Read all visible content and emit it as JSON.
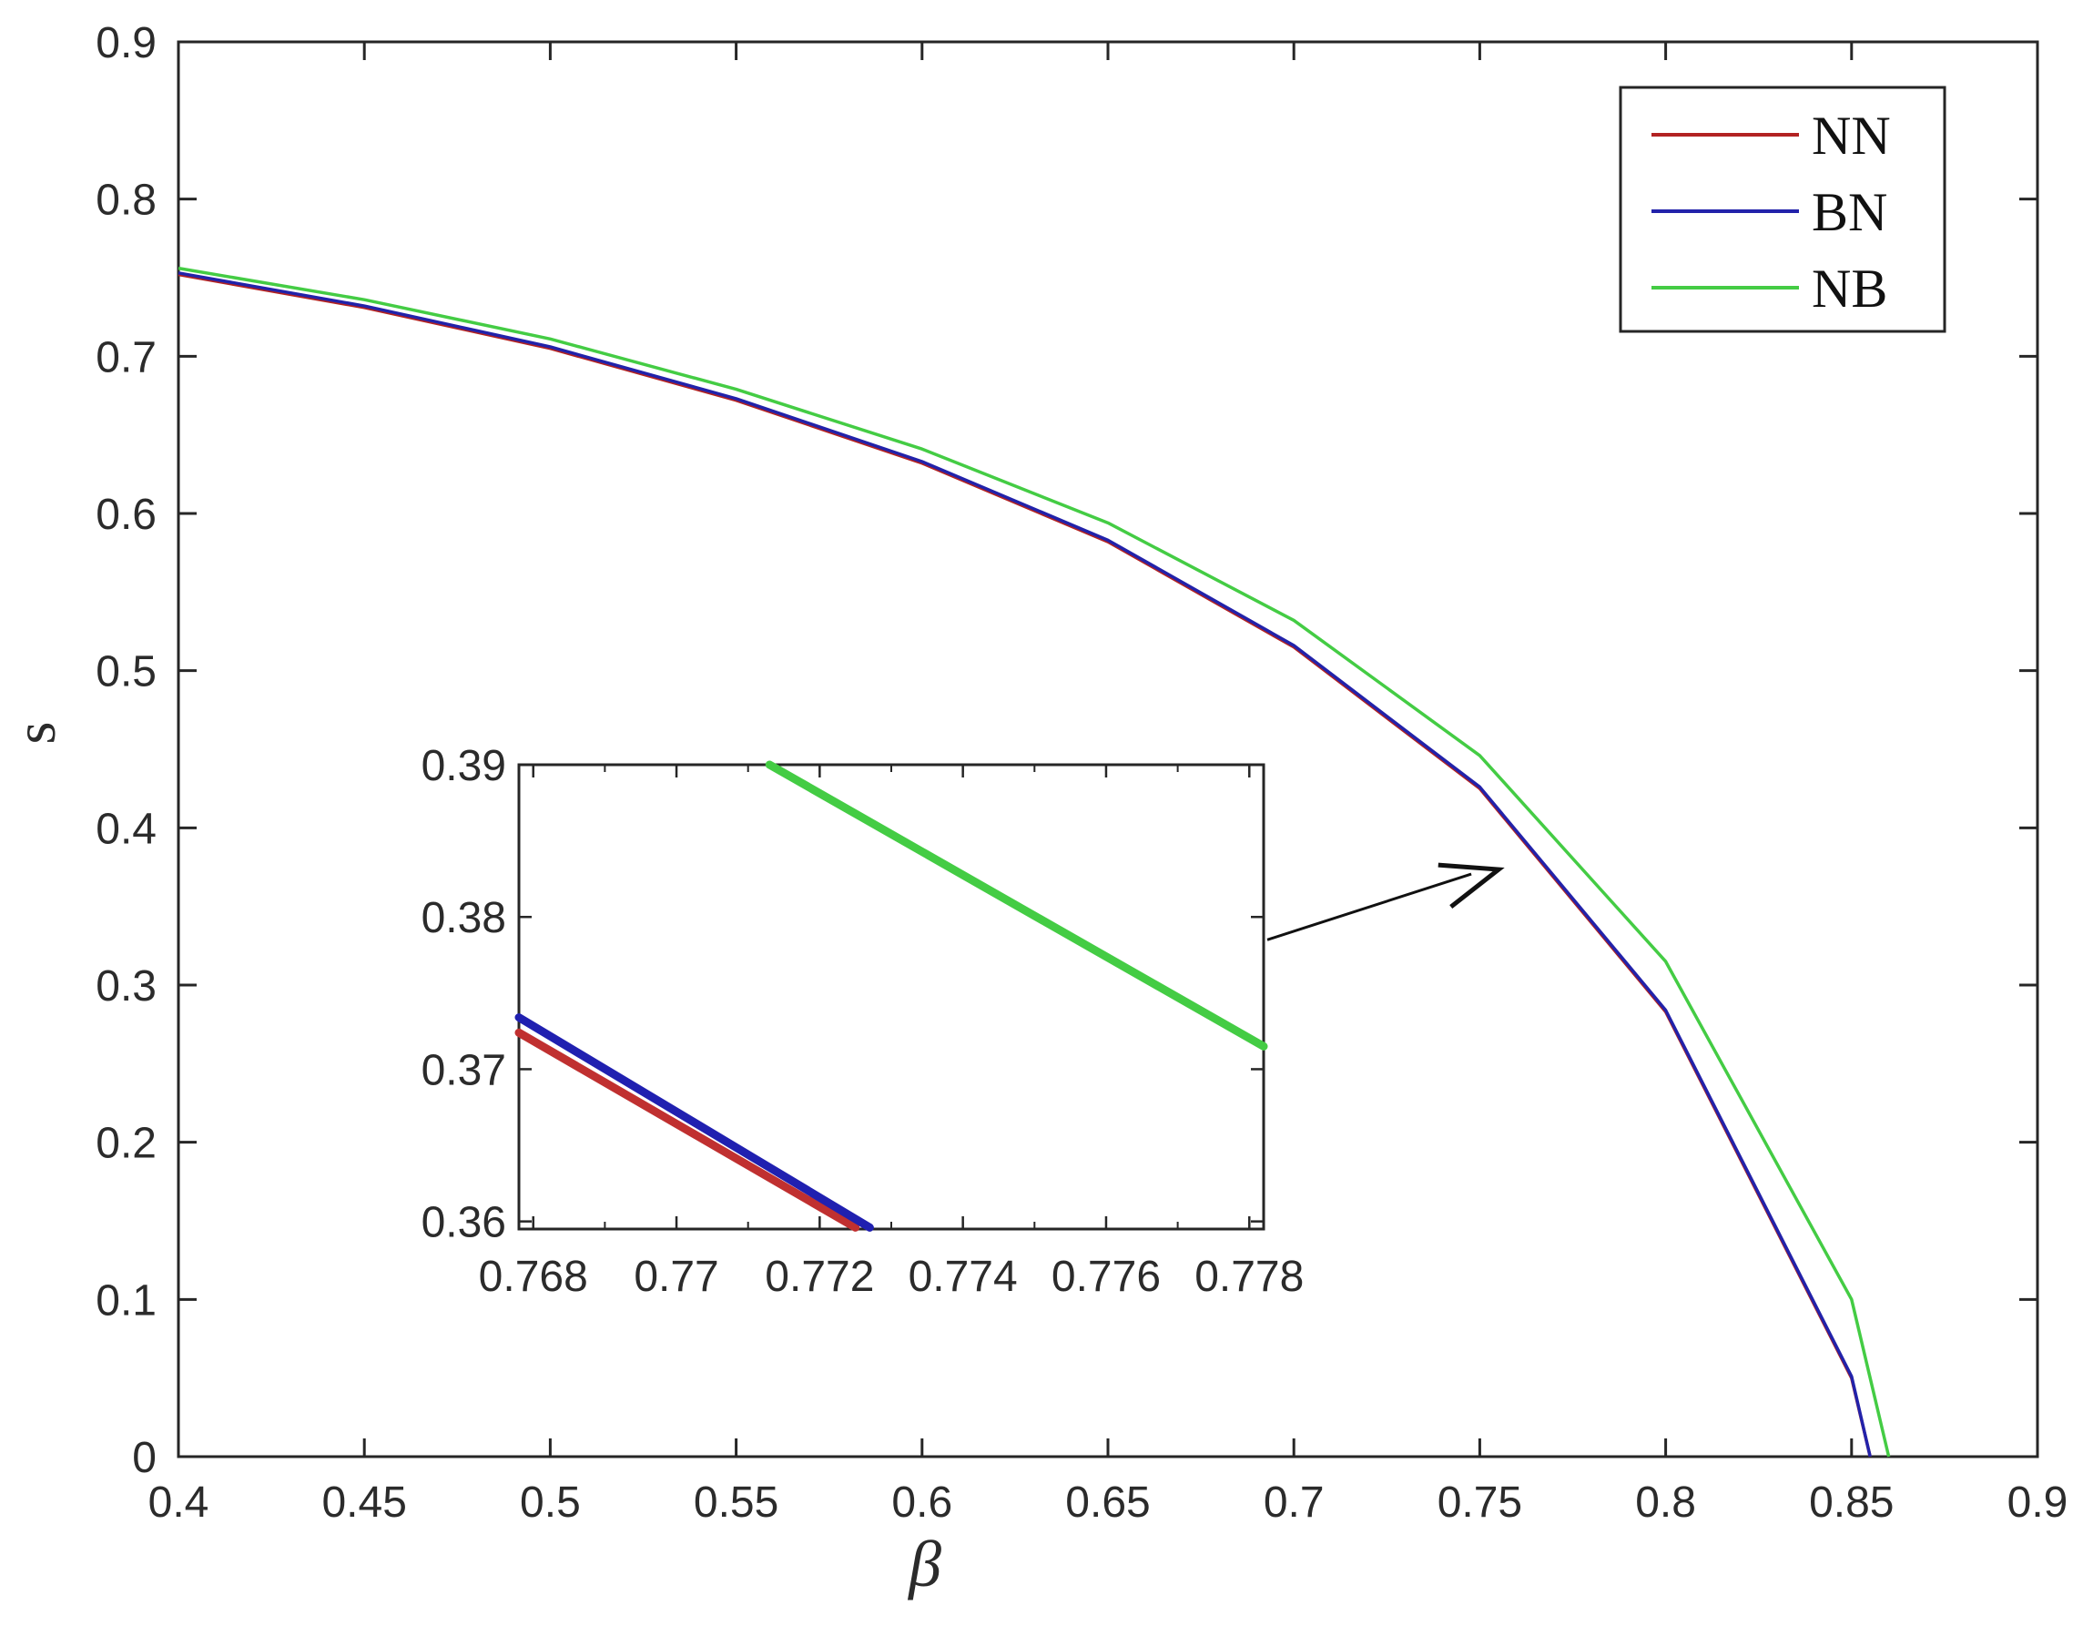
{
  "chart_data": {
    "type": "line",
    "xlabel": "β",
    "ylabel": "s",
    "xlim": [
      0.4,
      0.9
    ],
    "ylim": [
      0,
      0.9
    ],
    "x_ticks": [
      "0.4",
      "0.45",
      "0.5",
      "0.55",
      "0.6",
      "0.65",
      "0.7",
      "0.75",
      "0.8",
      "0.85",
      "0.9"
    ],
    "y_ticks": [
      "0",
      "0.1",
      "0.2",
      "0.3",
      "0.4",
      "0.5",
      "0.6",
      "0.7",
      "0.8",
      "0.9"
    ],
    "grid": false,
    "legend_position": "top-right",
    "series": [
      {
        "name": "NN",
        "color": "#b22222",
        "x": [
          0.4,
          0.45,
          0.5,
          0.55,
          0.6,
          0.65,
          0.7,
          0.75,
          0.8,
          0.85,
          0.855
        ],
        "y": [
          0.752,
          0.731,
          0.705,
          0.672,
          0.632,
          0.582,
          0.515,
          0.425,
          0.283,
          0.05,
          0.0
        ]
      },
      {
        "name": "BN",
        "color": "#2222aa",
        "x": [
          0.4,
          0.45,
          0.5,
          0.55,
          0.6,
          0.65,
          0.7,
          0.75,
          0.8,
          0.85,
          0.855
        ],
        "y": [
          0.753,
          0.732,
          0.706,
          0.673,
          0.633,
          0.583,
          0.516,
          0.426,
          0.284,
          0.051,
          0.0
        ]
      },
      {
        "name": "NB",
        "color": "#44cc44",
        "x": [
          0.4,
          0.45,
          0.5,
          0.55,
          0.6,
          0.65,
          0.7,
          0.75,
          0.8,
          0.85,
          0.86
        ],
        "y": [
          0.756,
          0.736,
          0.711,
          0.679,
          0.641,
          0.594,
          0.532,
          0.446,
          0.315,
          0.1,
          0.0
        ]
      }
    ],
    "inset": {
      "xlim": [
        0.7678,
        0.7782
      ],
      "ylim": [
        0.3595,
        0.39
      ],
      "x_ticks": [
        "0.768",
        "0.77",
        "0.772",
        "0.774",
        "0.776",
        "0.778"
      ],
      "y_ticks": [
        "0.36",
        "0.37",
        "0.38",
        "0.39"
      ],
      "series": [
        {
          "name": "NN",
          "color": "#c03030",
          "x": [
            0.7678,
            0.7725
          ],
          "y": [
            0.3724,
            0.3596
          ]
        },
        {
          "name": "BN",
          "color": "#2020b0",
          "x": [
            0.7678,
            0.7727
          ],
          "y": [
            0.3734,
            0.3596
          ]
        },
        {
          "name": "NB",
          "color": "#44cc44",
          "x": [
            0.7713,
            0.7782
          ],
          "y": [
            0.39,
            0.3715
          ]
        }
      ],
      "arrow_target": {
        "x": 0.758,
        "y": 0.377
      }
    }
  }
}
